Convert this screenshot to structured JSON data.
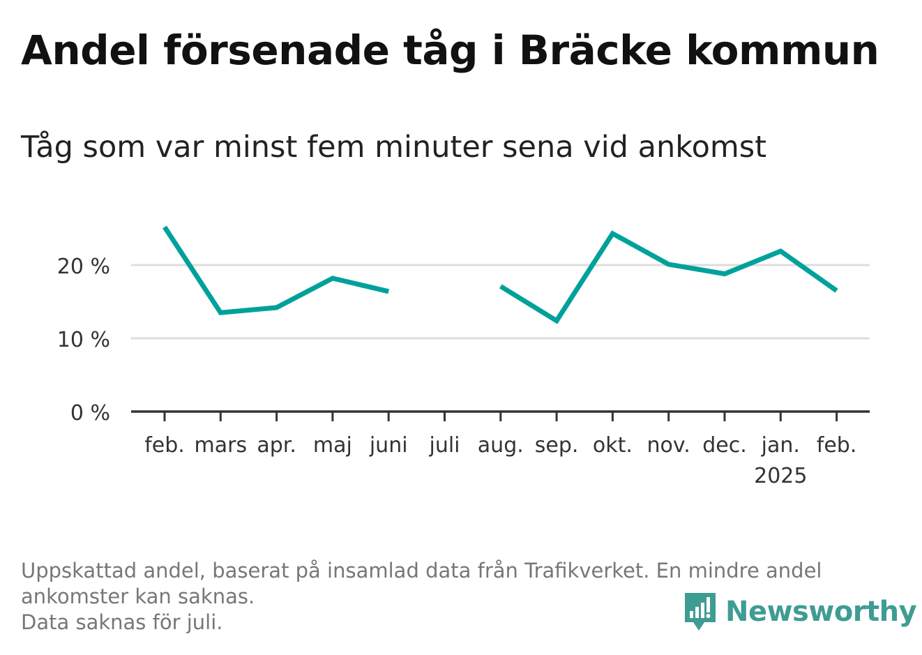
{
  "title": "Andel försenade tåg i Bräcke kommun",
  "subtitle": "Tåg som var minst fem minuter sena vid ankomst",
  "footnote": {
    "line1": "Uppskattad andel, baserat på insamlad data från Trafikverket. En mindre andel",
    "line2": "ankomster kan saknas.",
    "line3": "Data saknas för juli."
  },
  "logo": {
    "text": "Newsworthy",
    "icon": "newsworthy-logo-icon"
  },
  "colors": {
    "line": "#00a19a",
    "grid": "#dddddd",
    "axis": "#333333",
    "logo": "#3f9c93"
  },
  "chart_data": {
    "type": "line",
    "categories": [
      "feb.",
      "mars",
      "apr.",
      "maj",
      "juni",
      "juli",
      "aug.",
      "sep.",
      "okt.",
      "nov.",
      "dec.",
      "jan.",
      "feb."
    ],
    "year_label": "2025",
    "year_label_under": "jan.",
    "values": [
      25.2,
      13.5,
      14.2,
      18.2,
      16.4,
      null,
      17.1,
      12.4,
      24.3,
      20.1,
      18.8,
      21.9,
      16.5
    ],
    "y_ticks": [
      0,
      10,
      20
    ],
    "y_tick_labels": [
      "0 %",
      "10 %",
      "20 %"
    ],
    "ylim": [
      0,
      25
    ],
    "grid": true,
    "xlabel": "",
    "ylabel": ""
  }
}
